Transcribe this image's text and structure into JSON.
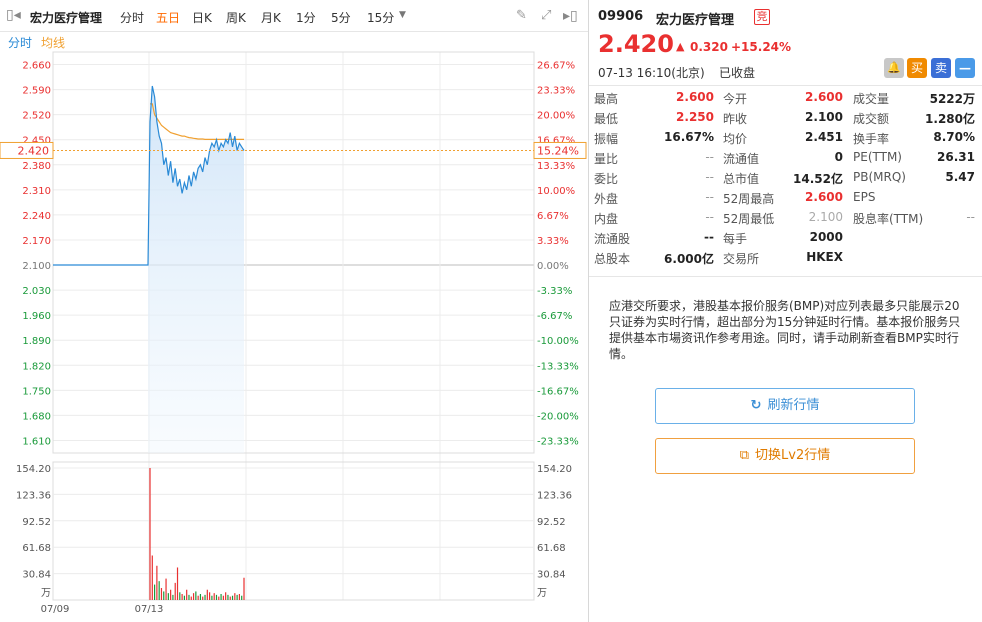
{
  "toolbar": {
    "stock_name": "宏力医疗管理",
    "tabs": [
      "分时",
      "五日",
      "日K",
      "周K",
      "月K",
      "1分",
      "5分",
      "15分"
    ],
    "active_tab": "五日",
    "legend_time": "分时",
    "legend_avg": "均线"
  },
  "chart_data": {
    "type": "line",
    "price_ticks_left": [
      "2.660",
      "2.590",
      "2.520",
      "2.450",
      "2.380",
      "2.310",
      "2.240",
      "2.170",
      "2.100",
      "2.030",
      "1.960",
      "1.890",
      "1.820",
      "1.750",
      "1.680",
      "1.610"
    ],
    "pct_ticks_right": [
      "26.67%",
      "23.33%",
      "20.00%",
      "16.67%",
      "13.33%",
      "10.00%",
      "6.67%",
      "3.33%",
      "0.00%",
      "-3.33%",
      "-6.67%",
      "-10.00%",
      "-13.33%",
      "-16.67%",
      "-20.00%",
      "-23.33%"
    ],
    "volume_ticks": [
      "154.20",
      "123.36",
      "92.52",
      "61.68",
      "30.84"
    ],
    "volume_unit": "万",
    "dates": [
      "07/09",
      "07/13"
    ],
    "current_price_label": "2.420",
    "current_pct_label": "15.24%",
    "prev_close": 2.1,
    "colors": {
      "price_line": "#2a8ad6",
      "avg_line": "#f0a030",
      "up": "#e93030",
      "down": "#1a9a3a",
      "fill": "#d8eafb"
    },
    "price_series": [
      2.1,
      2.1,
      2.5,
      2.6,
      2.57,
      2.5,
      2.46,
      2.44,
      2.38,
      2.4,
      2.35,
      2.39,
      2.33,
      2.37,
      2.32,
      2.34,
      2.3,
      2.33,
      2.31,
      2.35,
      2.32,
      2.36,
      2.34,
      2.37,
      2.38,
      2.36,
      2.4,
      2.38,
      2.42,
      2.44,
      2.43,
      2.45,
      2.42,
      2.44,
      2.43,
      2.45,
      2.44,
      2.47,
      2.43,
      2.46,
      2.42,
      2.44,
      2.43,
      2.42
    ],
    "avg_series": [
      2.1,
      2.1,
      2.55,
      2.55,
      2.52,
      2.51,
      2.5,
      2.49,
      2.485,
      2.48,
      2.475,
      2.47,
      2.468,
      2.466,
      2.464,
      2.462,
      2.46,
      2.46,
      2.458,
      2.456,
      2.455,
      2.454,
      2.453,
      2.452,
      2.452,
      2.452,
      2.451,
      2.451,
      2.451,
      2.451,
      2.451,
      2.451,
      2.451,
      2.451,
      2.451,
      2.451,
      2.451,
      2.451,
      2.451,
      2.451,
      2.451,
      2.451,
      2.451,
      2.451
    ],
    "volume_series": [
      0,
      0,
      154.2,
      52,
      18,
      40,
      22,
      14,
      10,
      25,
      8,
      12,
      6,
      20,
      38,
      9,
      7,
      5,
      12,
      6,
      4,
      8,
      10,
      5,
      7,
      4,
      6,
      12,
      9,
      5,
      8,
      6,
      4,
      7,
      5,
      9,
      6,
      4,
      5,
      8,
      6,
      7,
      5,
      26
    ],
    "volume_up": [
      0,
      0,
      1,
      1,
      0,
      1,
      0,
      1,
      0,
      1,
      0,
      1,
      0,
      1,
      1,
      0,
      1,
      0,
      1,
      0,
      1,
      1,
      0,
      1,
      0,
      1,
      0,
      1,
      1,
      0,
      1,
      0,
      1,
      0,
      1,
      1,
      0,
      1,
      0,
      1,
      0,
      1,
      0,
      1
    ]
  },
  "quote": {
    "code": "09906",
    "name": "宏力医疗管理",
    "badge": "竞",
    "price": "2.420",
    "change": "0.320",
    "change_pct": "+15.24%",
    "datetime": "07-13  16:10(北京)",
    "status": "已收盘",
    "buy_label": "买",
    "sell_label": "卖",
    "menu_label": "—"
  },
  "stats": [
    [
      {
        "l": "最高",
        "v": "2.600",
        "c": "red"
      },
      {
        "l": "今开",
        "v": "2.600",
        "c": "red"
      },
      {
        "l": "成交量",
        "v": "5222万",
        "c": ""
      }
    ],
    [
      {
        "l": "最低",
        "v": "2.250",
        "c": "red"
      },
      {
        "l": "昨收",
        "v": "2.100",
        "c": ""
      },
      {
        "l": "成交额",
        "v": "1.280亿",
        "c": ""
      }
    ],
    [
      {
        "l": "振幅",
        "v": "16.67%",
        "c": ""
      },
      {
        "l": "均价",
        "v": "2.451",
        "c": ""
      },
      {
        "l": "换手率",
        "v": "8.70%",
        "c": ""
      }
    ],
    [
      {
        "l": "量比",
        "v": "--",
        "c": "dash"
      },
      {
        "l": "流通值",
        "v": "0",
        "c": ""
      },
      {
        "l": "PE(TTM)",
        "v": "26.31",
        "c": ""
      }
    ],
    [
      {
        "l": "委比",
        "v": "--",
        "c": "dash"
      },
      {
        "l": "总市值",
        "v": "14.52亿",
        "c": ""
      },
      {
        "l": "PB(MRQ)",
        "v": "5.47",
        "c": ""
      }
    ],
    [
      {
        "l": "外盘",
        "v": "--",
        "c": "dash"
      },
      {
        "l": "52周最高",
        "v": "2.600",
        "c": "red"
      },
      {
        "l": "EPS",
        "v": "",
        "c": ""
      }
    ],
    [
      {
        "l": "内盘",
        "v": "--",
        "c": "dash"
      },
      {
        "l": "52周最低",
        "v": "2.100",
        "c": "gray"
      },
      {
        "l": "股息率(TTM)",
        "v": "--",
        "c": "dash"
      }
    ],
    [
      {
        "l": "流通股",
        "v": "--",
        "c": ""
      },
      {
        "l": "每手",
        "v": "2000",
        "c": ""
      },
      {
        "l": "",
        "v": "",
        "c": ""
      }
    ],
    [
      {
        "l": "总股本",
        "v": "6.000亿",
        "c": ""
      },
      {
        "l": "交易所",
        "v": "HKEX",
        "c": ""
      },
      {
        "l": "",
        "v": "",
        "c": ""
      }
    ]
  ],
  "notice": "应港交所要求，港股基本报价服务(BMP)对应列表最多只能展示20只证券为实时行情，超出部分为15分钟延时行情。基本报价服务只提供基本市場资讯作参考用途。同时，请手动刷新查看BMP实时行情。",
  "buttons": {
    "refresh": "刷新行情",
    "lv2": "切换Lv2行情"
  }
}
